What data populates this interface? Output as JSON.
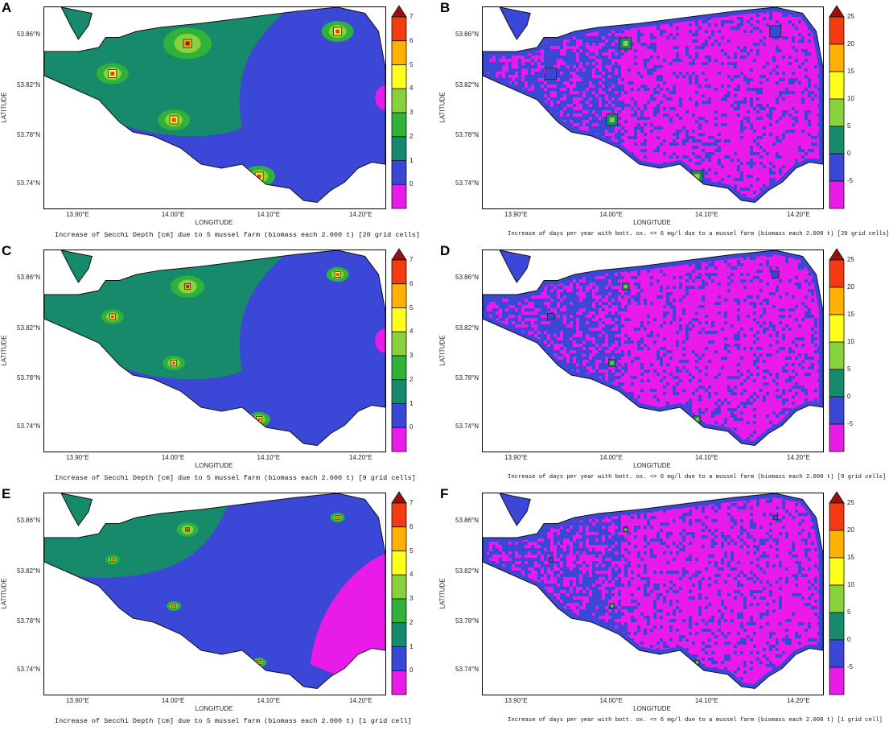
{
  "figure": {
    "panels": [
      {
        "letter": "A",
        "variable": "secchi",
        "lat_ticks": [
          "53.86°N",
          "53.82°N",
          "53.78°N",
          "53.74°N"
        ],
        "lon_ticks": [
          "13.90°E",
          "14.00°E",
          "14.10°E",
          "14.20°E"
        ],
        "xlabel": "LONGITUDE",
        "ylabel": "LATITUDE",
        "colorbar": [
          "7",
          "6",
          "5",
          "4",
          "3",
          "2",
          "1",
          "0"
        ],
        "caption": "Increase of Secchi Depth [cm] due to 5 mussel farm (biomass each 2.000 t) [20 grid cells]",
        "farm_size": "large"
      },
      {
        "letter": "B",
        "variable": "oxygen",
        "lat_ticks": [
          "53.86°N",
          "53.82°N",
          "53.78°N",
          "53.74°N"
        ],
        "lon_ticks": [
          "13.90°E",
          "14.00°E",
          "14.10°E",
          "14.20°E"
        ],
        "xlabel": "LONGITUDE",
        "ylabel": "LATITUDE",
        "colorbar": [
          "25",
          "20",
          "15",
          "10",
          "5",
          "0",
          "-5"
        ],
        "caption": "Increase of days per year with bott. ox. <= 6 mg/l due to a mussel farm (biomass each 2.000 t) [20 grid cells]",
        "farm_size": "large"
      },
      {
        "letter": "C",
        "variable": "secchi",
        "lat_ticks": [
          "53.86°N",
          "53.82°N",
          "53.78°N",
          "53.74°N"
        ],
        "lon_ticks": [
          "13.90°E",
          "14.00°E",
          "14.10°E",
          "14.20°E"
        ],
        "xlabel": "LONGITUDE",
        "ylabel": "LATITUDE",
        "colorbar": [
          "7",
          "6",
          "5",
          "4",
          "3",
          "2",
          "1",
          "0"
        ],
        "caption": "Increase of Secchi Depth [cm] due to 5 mussel farm (biomass each 2.000 t) [9 grid cells]",
        "farm_size": "medium"
      },
      {
        "letter": "D",
        "variable": "oxygen",
        "lat_ticks": [
          "53.86°N",
          "53.82°N",
          "53.78°N",
          "53.74°N"
        ],
        "lon_ticks": [
          "13.90°E",
          "14.00°E",
          "14.10°E",
          "14.20°E"
        ],
        "xlabel": "LONGITUDE",
        "ylabel": "LATITUDE",
        "colorbar": [
          "25",
          "20",
          "15",
          "10",
          "5",
          "0",
          "-5"
        ],
        "caption": "Increase of days per year with bott. ox. <= 6 mg/l due to a mussel farm (biomass each 2.000 t) [9 grid cells]",
        "farm_size": "medium"
      },
      {
        "letter": "E",
        "variable": "secchi",
        "lat_ticks": [
          "53.86°N",
          "53.82°N",
          "53.78°N",
          "53.74°N"
        ],
        "lon_ticks": [
          "13.90°E",
          "14.00°E",
          "14.10°E",
          "14.20°E"
        ],
        "xlabel": "LONGITUDE",
        "ylabel": "LATITUDE",
        "colorbar": [
          "7",
          "6",
          "5",
          "4",
          "3",
          "2",
          "1",
          "0"
        ],
        "caption": "Increase of Secchi Depth [cm] due to 5 mussel farm (biomass each 2.000 t) [1 grid cell]",
        "farm_size": "small"
      },
      {
        "letter": "F",
        "variable": "oxygen",
        "lat_ticks": [
          "53.86°N",
          "53.82°N",
          "53.78°N",
          "53.74°N"
        ],
        "lon_ticks": [
          "13.90°E",
          "14.00°E",
          "14.10°E",
          "14.20°E"
        ],
        "xlabel": "LONGITUDE",
        "ylabel": "LATITUDE",
        "colorbar": [
          "25",
          "20",
          "15",
          "10",
          "5",
          "0",
          "-5"
        ],
        "caption": "Increase of days per year with bott. ox. <= 6 mg/l due to a mussel farm (biomass each 2.000 t) [1 grid cell]",
        "farm_size": "small"
      }
    ],
    "colors": {
      "magenta": "#e81be8",
      "blue": "#3b47d6",
      "teal": "#178a6c",
      "green": "#2fb13a",
      "light_green": "#8ad23b",
      "yellow": "#ffff1e",
      "orange": "#ffb000",
      "red_orange": "#f43a10",
      "dark_red": "#9c0f0f"
    }
  }
}
